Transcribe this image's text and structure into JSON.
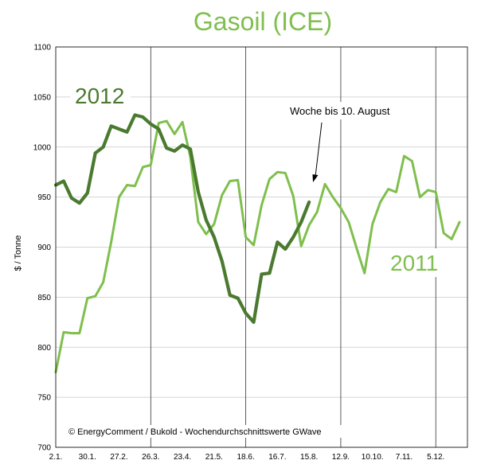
{
  "chart_data": {
    "type": "line",
    "title": "Gasoil (ICE)",
    "ylabel": "$ / Tonne",
    "xlabel": "",
    "ylim": [
      700,
      1100
    ],
    "yticks": [
      700,
      750,
      800,
      850,
      900,
      950,
      1000,
      1050,
      1100
    ],
    "x_tick_labels": [
      "2.1.",
      "30.1.",
      "27.2.",
      "26.3.",
      "23.4.",
      "21.5.",
      "18.6.",
      "16.7.",
      "15.8.",
      "12.9.",
      "10.10.",
      "7.11.",
      "5.12."
    ],
    "grid": {
      "horizontal": true,
      "vertical": true
    },
    "colors": {
      "2011": "#7fbf4d",
      "2012": "#4a7a2f"
    },
    "series": [
      {
        "name": "2011",
        "week_index": [
          0,
          1,
          2,
          3,
          4,
          5,
          6,
          7,
          8,
          9,
          10,
          11,
          12,
          13,
          14,
          15,
          16,
          17,
          18,
          19,
          20,
          21,
          22,
          23,
          24,
          25,
          26,
          27,
          28,
          29,
          30,
          31,
          32,
          33,
          34,
          35,
          36,
          37,
          38,
          39,
          40,
          41,
          42,
          43,
          44,
          45,
          46,
          47,
          48,
          49,
          50,
          51
        ],
        "values": [
          775,
          815,
          814,
          814,
          849,
          851,
          865,
          905,
          950,
          962,
          961,
          980,
          982,
          1024,
          1026,
          1013,
          1025,
          990,
          925,
          913,
          923,
          952,
          966,
          967,
          910,
          902,
          942,
          968,
          975,
          974,
          951,
          901,
          922,
          935,
          963,
          950,
          939,
          925,
          899,
          874,
          923,
          945,
          958,
          955,
          991,
          986,
          950,
          957,
          955,
          914,
          908,
          925
        ]
      },
      {
        "name": "2012",
        "week_index": [
          0,
          1,
          2,
          3,
          4,
          5,
          6,
          7,
          8,
          9,
          10,
          11,
          12,
          13,
          14,
          15,
          16,
          17,
          18,
          19,
          20,
          21,
          22,
          23,
          24,
          25,
          26,
          27,
          28,
          29,
          30,
          31,
          32
        ],
        "values": [
          962,
          966,
          949,
          944,
          954,
          994,
          1000,
          1021,
          1018,
          1015,
          1032,
          1030,
          1023,
          1018,
          999,
          996,
          1002,
          998,
          955,
          927,
          910,
          886,
          852,
          849,
          834,
          825,
          873,
          874,
          905,
          898,
          910,
          925,
          945
        ]
      }
    ],
    "annotations": [
      {
        "text": "Woche bis 10. August"
      },
      {
        "text": "© EnergyComment / Bukold - Wochendurchschnittswerte GWave"
      }
    ],
    "series_labels": {
      "2012": "2012",
      "2011": "2011"
    }
  }
}
